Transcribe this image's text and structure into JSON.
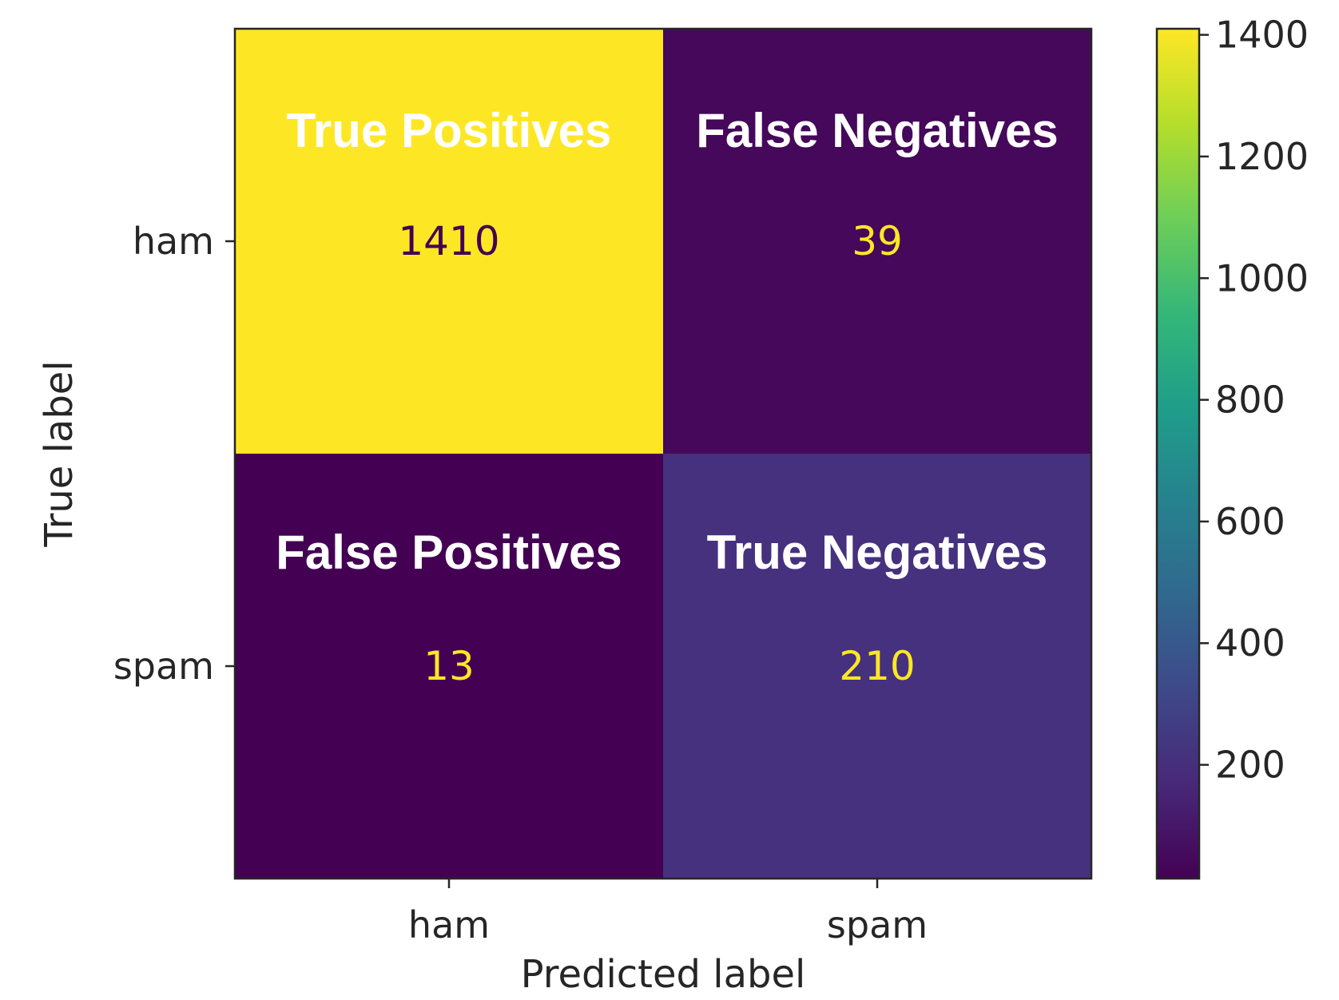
{
  "chart_data": {
    "type": "heatmap",
    "colormap": "viridis",
    "rows": [
      "ham",
      "spam"
    ],
    "columns": [
      "ham",
      "spam"
    ],
    "values": [
      [
        1410,
        39
      ],
      [
        13,
        210
      ]
    ],
    "cell_text_colors": [
      [
        "#440154",
        "#fde725"
      ],
      [
        "#fde725",
        "#fde725"
      ]
    ],
    "annotations": [
      [
        "True Positives",
        "False Negatives"
      ],
      [
        "False Positives",
        "True Negatives"
      ]
    ],
    "xlabel": "Predicted label",
    "ylabel": "True label",
    "colorbar": {
      "min": 13,
      "max": 1410,
      "ticks": [
        200,
        400,
        600,
        800,
        1000,
        1200,
        1400
      ]
    },
    "colors": {
      "viridis_stops": [
        "#440154",
        "#482878",
        "#3e4989",
        "#31688e",
        "#26828e",
        "#1f9e89",
        "#35b779",
        "#6ece58",
        "#b5de2b",
        "#fde725"
      ],
      "axis": "#262626"
    }
  }
}
